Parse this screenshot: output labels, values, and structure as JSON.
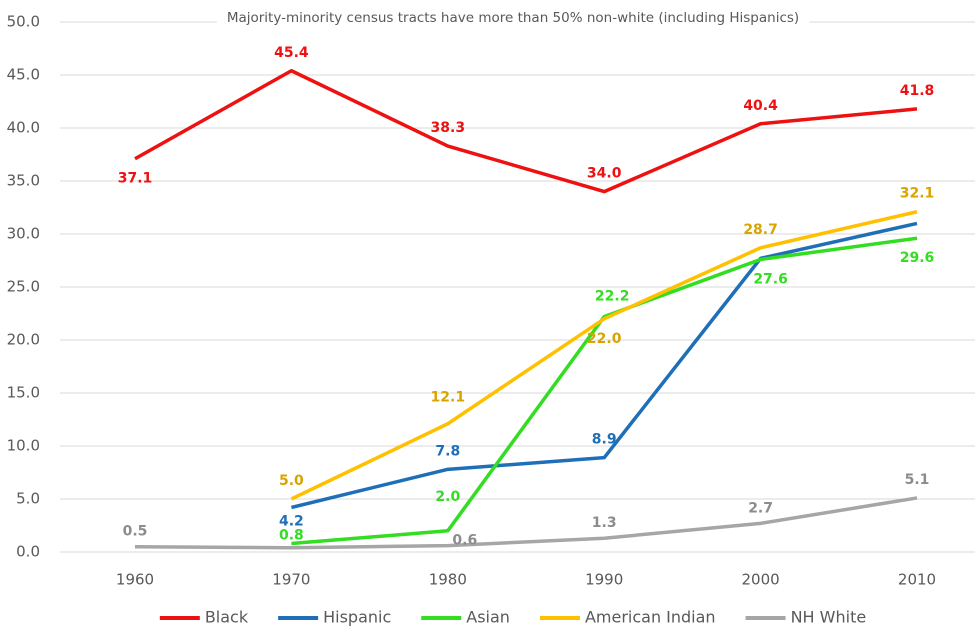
{
  "chart_data": {
    "type": "line",
    "title": "Majority-minority census tracts have more than 50% non-white (including Hispanics)",
    "categories": [
      "1960",
      "1970",
      "1980",
      "1990",
      "2000",
      "2010"
    ],
    "series": [
      {
        "name": "Black",
        "color": "#ee1111",
        "values": [
          37.1,
          45.4,
          38.3,
          34.0,
          40.4,
          41.8
        ],
        "value_labels": [
          "37.1",
          "45.4",
          "38.3",
          "34.0",
          "40.4",
          "41.8"
        ]
      },
      {
        "name": "Hispanic",
        "color": "#1f6fb8",
        "values": [
          null,
          4.2,
          7.8,
          8.9,
          27.7,
          31.0
        ],
        "value_labels": [
          null,
          "4.2",
          "7.8",
          "8.9",
          null,
          null
        ]
      },
      {
        "name": "Asian",
        "color": "#33dd22",
        "values": [
          null,
          0.8,
          2.0,
          22.2,
          27.6,
          29.6
        ],
        "value_labels": [
          null,
          "0.8",
          "2.0",
          "22.2",
          "27.6",
          "29.6"
        ]
      },
      {
        "name": "American Indian",
        "color": "#ffc000",
        "values": [
          null,
          5.0,
          12.1,
          22.0,
          28.7,
          32.1
        ],
        "value_labels": [
          null,
          "5.0",
          "12.1",
          "22.0",
          "28.7",
          "32.1"
        ]
      },
      {
        "name": "NH White",
        "color": "#a6a6a6",
        "values": [
          0.5,
          0.4,
          0.6,
          1.3,
          2.7,
          5.1
        ],
        "value_labels": [
          "0.5",
          null,
          "0.6",
          "1.3",
          "2.7",
          "5.1"
        ]
      }
    ],
    "ylim": [
      0,
      50
    ],
    "yticks": [
      {
        "value": 0,
        "label": "0.0"
      },
      {
        "value": 5,
        "label": "5.0"
      },
      {
        "value": 10,
        "label": "10.0"
      },
      {
        "value": 15,
        "label": "15.0"
      },
      {
        "value": 20,
        "label": "20.0"
      },
      {
        "value": 25,
        "label": "25.0"
      },
      {
        "value": 30,
        "label": "30.0"
      },
      {
        "value": 35,
        "label": "35.0"
      },
      {
        "value": 40,
        "label": "40.0"
      },
      {
        "value": 45,
        "label": "45.0"
      },
      {
        "value": 50,
        "label": "50.0"
      }
    ],
    "grid": true,
    "legend": "bottom"
  }
}
